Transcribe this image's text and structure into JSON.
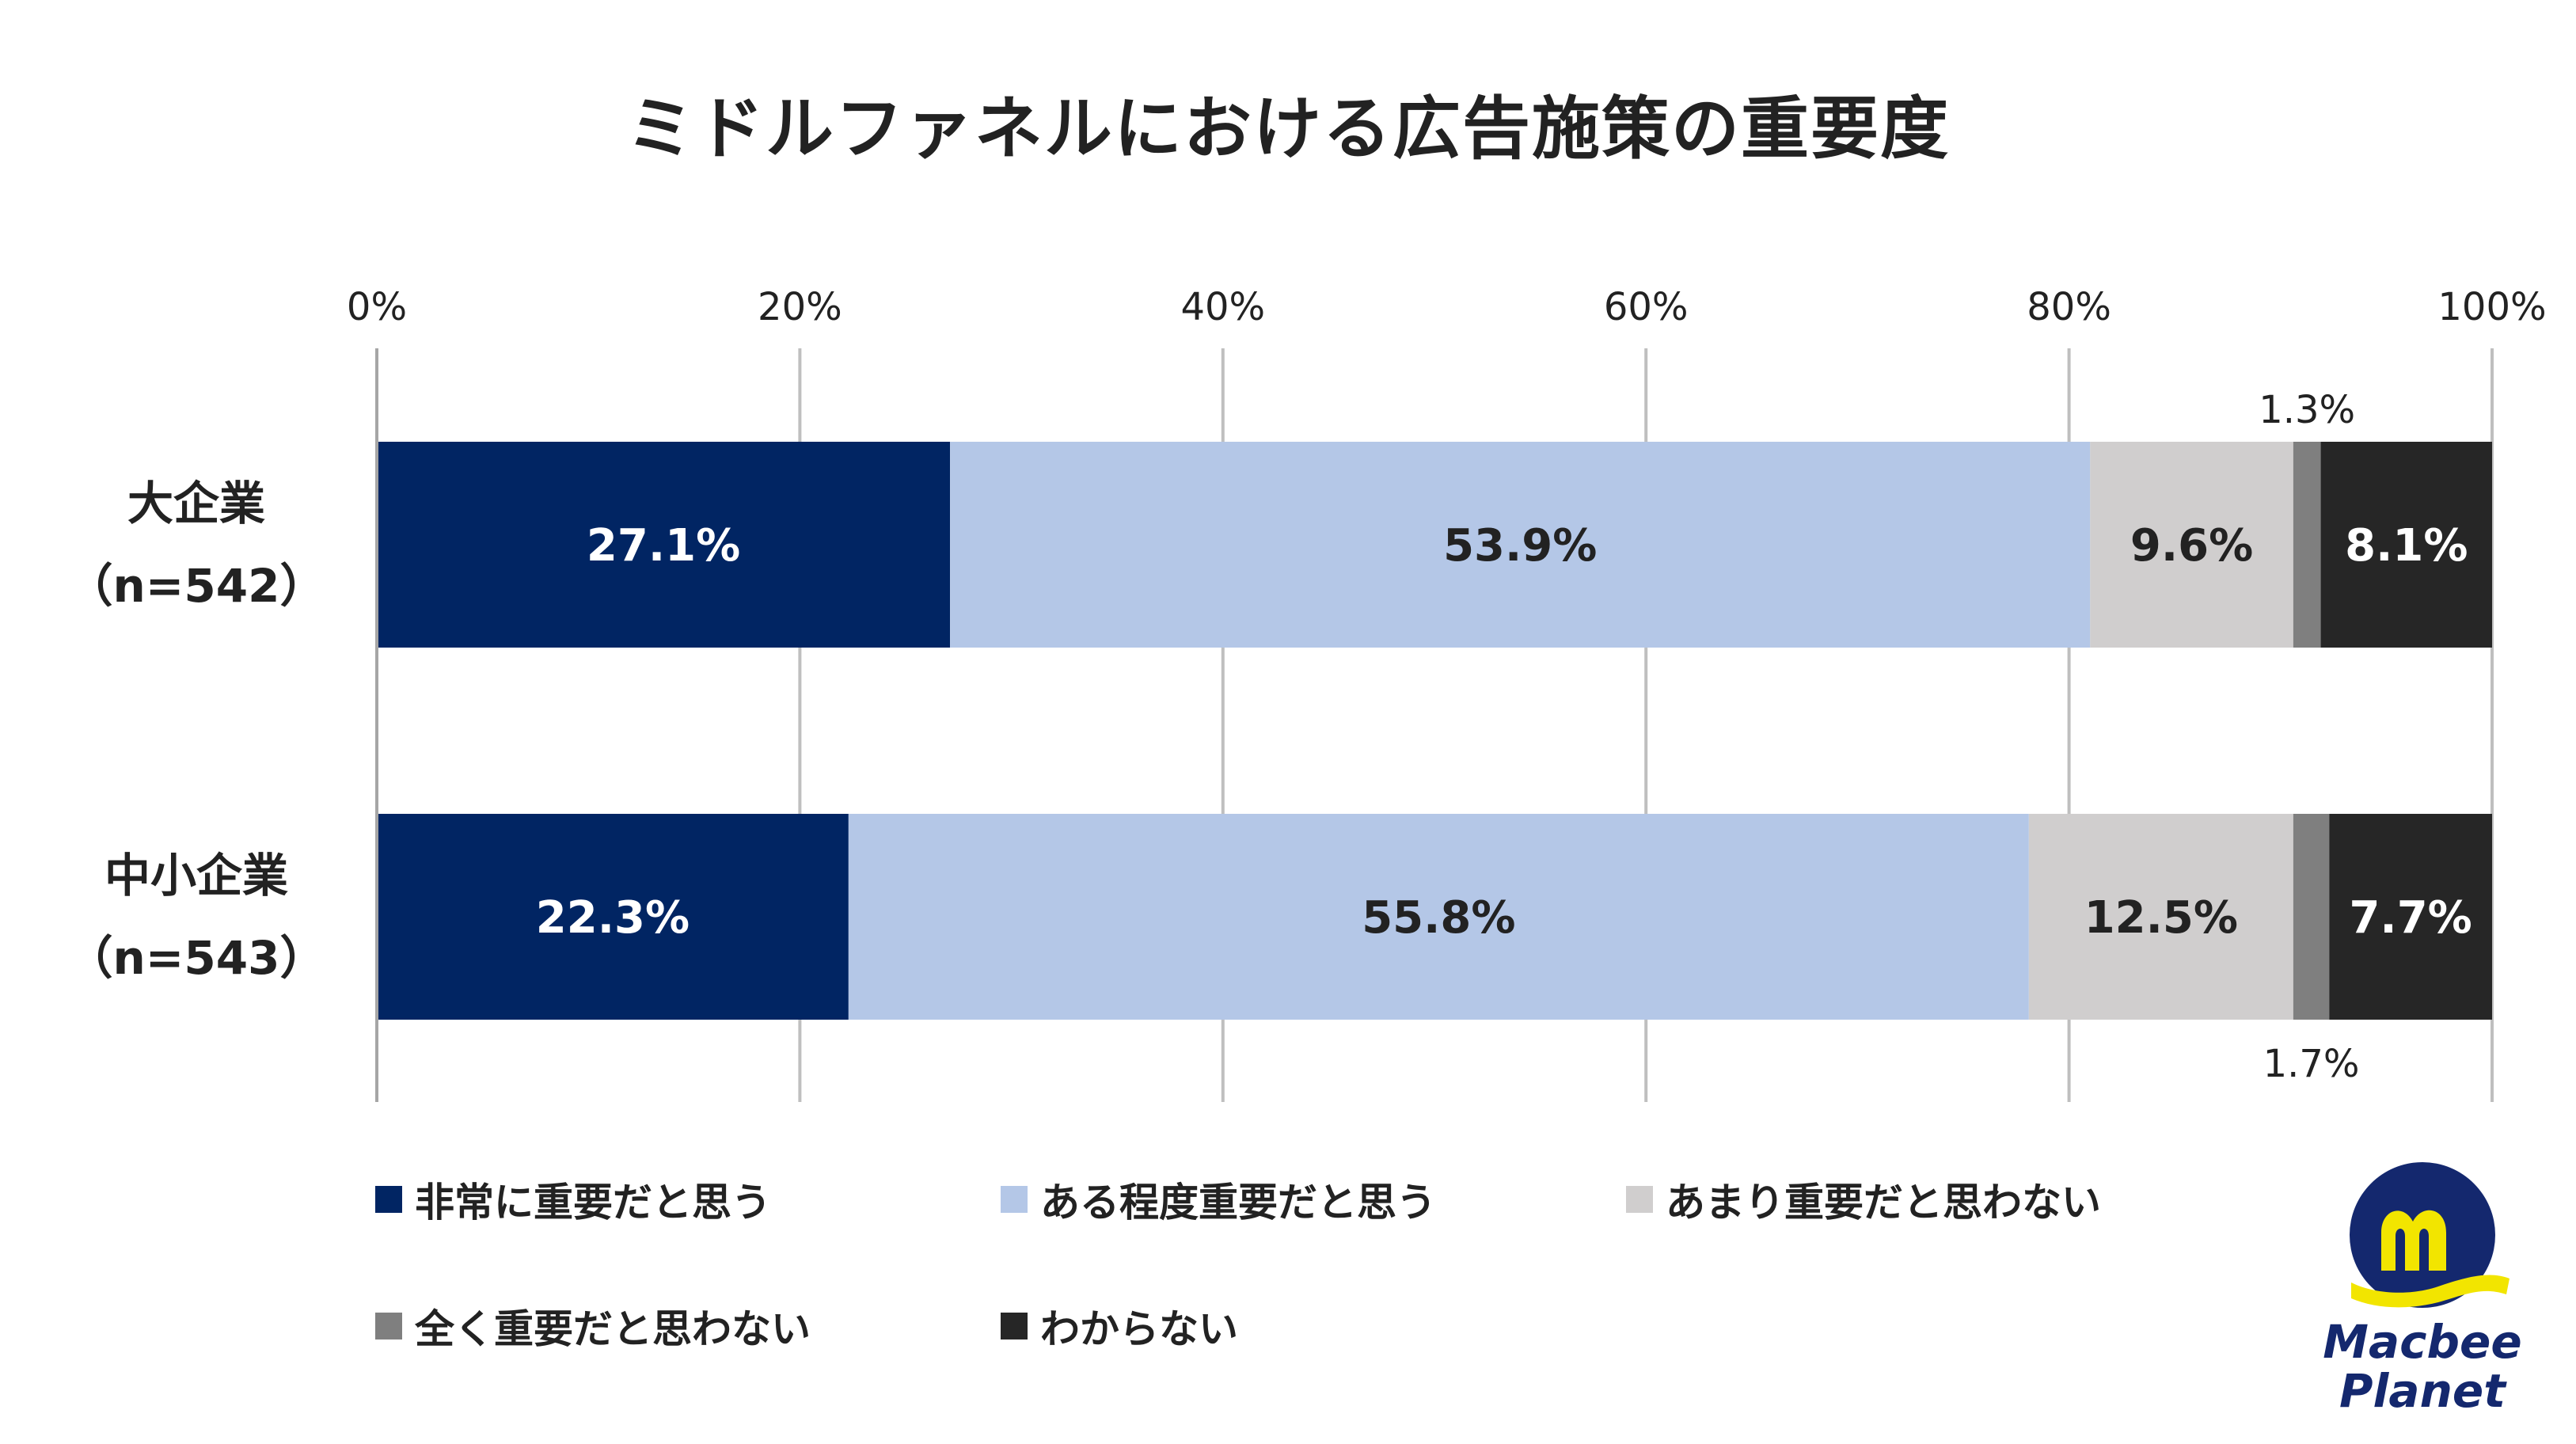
{
  "title": "ミドルファネルにおける広告施策の重要度",
  "chart_data": {
    "type": "bar",
    "orientation": "horizontal",
    "stacked": true,
    "xlim": [
      0,
      100
    ],
    "x_ticks": [
      "0%",
      "20%",
      "40%",
      "60%",
      "80%",
      "100%"
    ],
    "grid": true,
    "legend_position": "bottom",
    "categories": [
      {
        "name": "大企業",
        "n_label": "（n=542）"
      },
      {
        "name": "中小企業",
        "n_label": "（n=543）"
      }
    ],
    "series": [
      {
        "name": "非常に重要だと思う",
        "color": "#012563",
        "label_color": "#ffffff",
        "values": [
          27.1,
          22.3
        ],
        "labels": [
          "27.1%",
          "22.3%"
        ]
      },
      {
        "name": "ある程度重要だと思う",
        "color": "#b4c7e7",
        "label_color": "#222222",
        "values": [
          53.9,
          55.8
        ],
        "labels": [
          "53.9%",
          "55.8%"
        ]
      },
      {
        "name": "あまり重要だと思わない",
        "color": "#d0cece",
        "label_color": "#222222",
        "values": [
          9.6,
          12.5
        ],
        "labels": [
          "9.6%",
          "12.5%"
        ]
      },
      {
        "name": "全く重要だと思わない",
        "color": "#7f7f7f",
        "label_color": "#222222",
        "values": [
          1.3,
          1.7
        ],
        "labels": [
          "1.3%",
          "1.7%"
        ],
        "label_outside": true
      },
      {
        "name": "わからない",
        "color": "#262626",
        "label_color": "#ffffff",
        "values": [
          8.1,
          7.7
        ],
        "labels": [
          "8.1%",
          "7.7%"
        ]
      }
    ]
  },
  "legend": {
    "items": [
      {
        "label": "非常に重要だと思う",
        "color": "#012563"
      },
      {
        "label": "ある程度重要だと思う",
        "color": "#b4c7e7"
      },
      {
        "label": "あまり重要だと思わない",
        "color": "#d0cece"
      },
      {
        "label": "全く重要だと思わない",
        "color": "#7f7f7f"
      },
      {
        "label": "わからない",
        "color": "#262626"
      }
    ]
  },
  "logo": {
    "line1": "Macbee",
    "line2": "Planet",
    "colors": {
      "navy": "#14286e",
      "yellow": "#f2e500"
    }
  }
}
